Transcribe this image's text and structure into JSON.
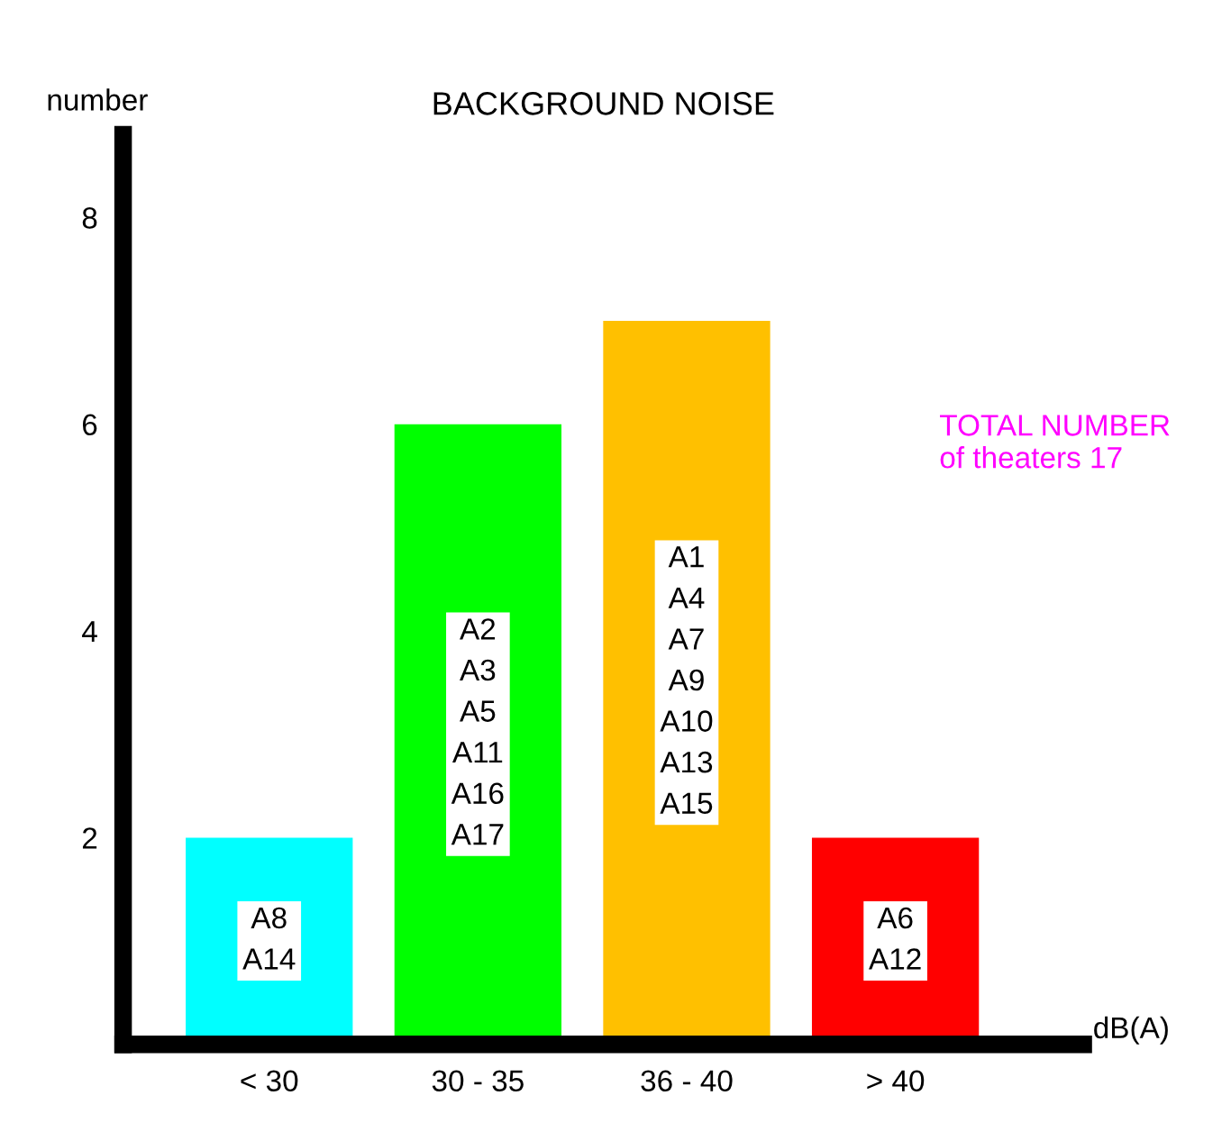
{
  "chart_data": {
    "type": "bar",
    "title": "BACKGROUND NOISE",
    "ylabel": "number",
    "xlabel": "dB(A)",
    "categories": [
      "< 30",
      "30 - 35",
      "36 - 40",
      "> 40"
    ],
    "values": [
      2,
      6,
      7,
      2
    ],
    "colors": [
      "#00ffff",
      "#00ff00",
      "#ffc000",
      "#ff0000"
    ],
    "ylim": [
      0,
      8.8
    ],
    "yticks": [
      2,
      4,
      6,
      8
    ],
    "grid": false,
    "legend": false,
    "annotations": [
      "A8\nA14",
      "A2\nA3\nA5\nA11\nA16\nA17",
      "A1\nA4\nA7\nA9\nA10\nA13\nA15",
      "A6\nA12",
      "TOTAL NUMBER\nof theaters 17"
    ]
  }
}
